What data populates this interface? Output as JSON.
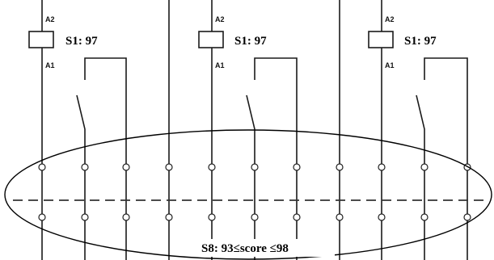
{
  "modules": [
    {
      "coil_top_label": "A2",
      "coil_bottom_label": "A1",
      "score_label": "S1: 97"
    },
    {
      "coil_top_label": "A2",
      "coil_bottom_label": "A1",
      "score_label": "S1: 97"
    },
    {
      "coil_top_label": "A2",
      "coil_bottom_label": "A1",
      "score_label": "S1: 97"
    }
  ],
  "region_label": "S8: 93≤score  ≤98",
  "colors": {
    "line": "#1a1a1a",
    "background": "#ffffff",
    "highlight_ellipse": "#000000"
  }
}
